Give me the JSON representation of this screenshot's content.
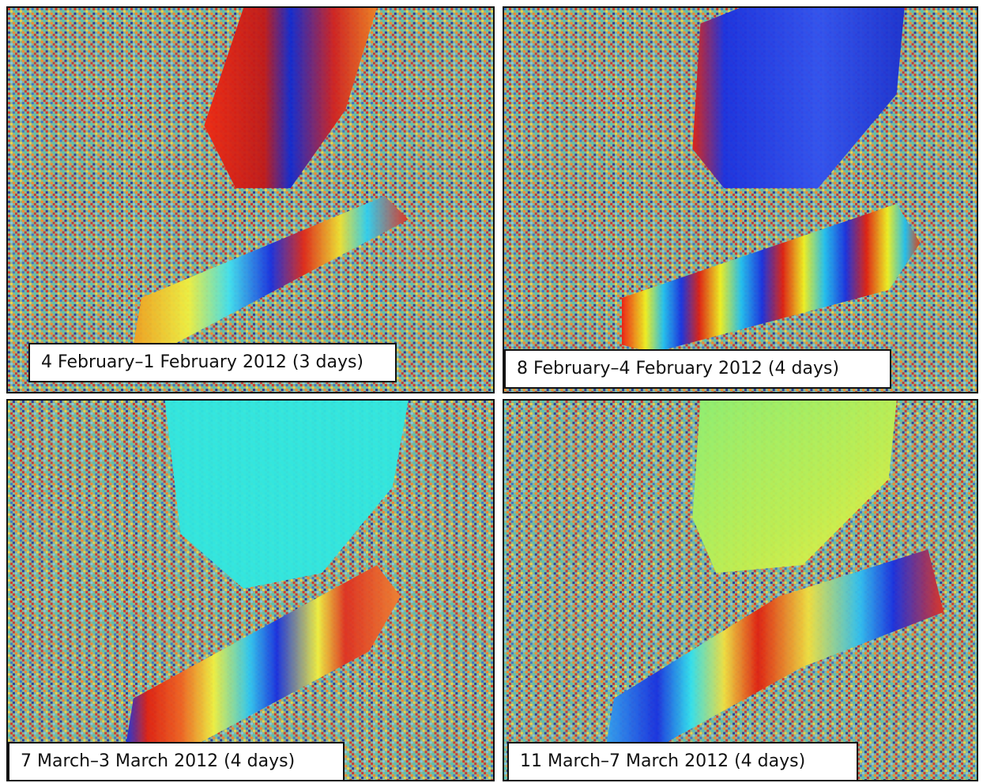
{
  "panels": [
    {
      "caption": "4 February–1 February 2012 (3 days)"
    },
    {
      "caption": "8 February–4 February 2012 (4 days)"
    },
    {
      "caption": "7 March–3 March 2012 (4 days)"
    },
    {
      "caption": "11 March–7 March 2012 (4 days)"
    }
  ],
  "colors": {
    "noise_palette": [
      "#d23a2a",
      "#3b78c8",
      "#e8d34a",
      "#4fc3b9",
      "#9fd07a",
      "#2a3f9f",
      "#f28a2e",
      "#7ec8e3"
    ],
    "fringe_red": "#e02010",
    "fringe_blue": "#1030e0",
    "fringe_cyan": "#20e0f0",
    "fringe_yellow": "#f0f020"
  }
}
